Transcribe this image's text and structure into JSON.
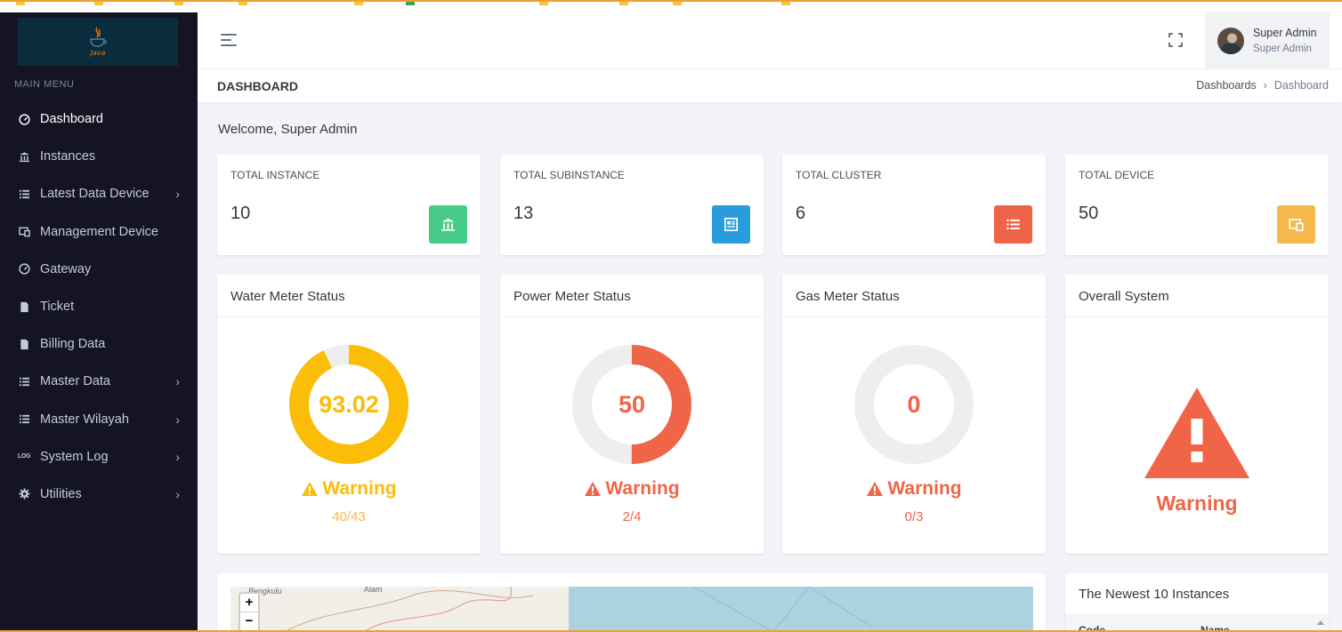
{
  "brand": {
    "logo_text": "Java"
  },
  "sidebar": {
    "menu_title": "MAIN MENU",
    "items": [
      {
        "label": "Dashboard",
        "icon": "speedometer-icon",
        "has_submenu": false,
        "active": true
      },
      {
        "label": "Instances",
        "icon": "bank-icon",
        "has_submenu": false,
        "active": false
      },
      {
        "label": "Latest Data Device",
        "icon": "list-icon",
        "has_submenu": true,
        "active": false
      },
      {
        "label": "Management Device",
        "icon": "devices-icon",
        "has_submenu": false,
        "active": false
      },
      {
        "label": "Gateway",
        "icon": "speedometer-icon",
        "has_submenu": false,
        "active": false
      },
      {
        "label": "Ticket",
        "icon": "file-icon",
        "has_submenu": false,
        "active": false
      },
      {
        "label": "Billing Data",
        "icon": "file-icon",
        "has_submenu": false,
        "active": false
      },
      {
        "label": "Master Data",
        "icon": "list-icon",
        "has_submenu": true,
        "active": false
      },
      {
        "label": "Master Wilayah",
        "icon": "list-icon",
        "has_submenu": true,
        "active": false
      },
      {
        "label": "System Log",
        "icon": "log-icon",
        "has_submenu": true,
        "active": false
      },
      {
        "label": "Utilities",
        "icon": "gear-icon",
        "has_submenu": true,
        "active": false
      }
    ]
  },
  "header": {
    "user_name": "Super Admin",
    "user_role": "Super Admin"
  },
  "page": {
    "title": "DASHBOARD",
    "breadcrumb": [
      "Dashboards",
      "Dashboard"
    ],
    "welcome": "Welcome, Super Admin"
  },
  "stats": [
    {
      "label": "TOTAL INSTANCE",
      "value": "10",
      "icon": "bank-icon",
      "color": "#45cb85"
    },
    {
      "label": "TOTAL SUBINSTANCE",
      "value": "13",
      "icon": "newspaper-icon",
      "color": "#299cdb"
    },
    {
      "label": "TOTAL CLUSTER",
      "value": "6",
      "icon": "list-icon",
      "color": "#f06548"
    },
    {
      "label": "TOTAL DEVICE",
      "value": "50",
      "icon": "devices-icon",
      "color": "#f7b84b"
    }
  ],
  "meters": [
    {
      "title": "Water Meter Status",
      "value": "93.02",
      "percent": 93.02,
      "status": "Warning",
      "ratio": "40/43",
      "color": "#fbbd08",
      "ratio_color": "#f7b84b"
    },
    {
      "title": "Power Meter Status",
      "value": "50",
      "percent": 50,
      "status": "Warning",
      "ratio": "2/4",
      "color": "#f06548",
      "ratio_color": "#f06548"
    },
    {
      "title": "Gas Meter Status",
      "value": "0",
      "percent": 0,
      "status": "Warning",
      "ratio": "0/3",
      "color": "#f06548",
      "ratio_color": "#f06548"
    }
  ],
  "overall": {
    "title": "Overall System",
    "status": "Warning",
    "color": "#f06548"
  },
  "map": {
    "labels": [
      "Bengkulu",
      "Alam"
    ],
    "zoom_in": "+",
    "zoom_out": "−"
  },
  "newest": {
    "title": "The Newest 10 Instances",
    "columns": [
      "Code",
      "Name"
    ]
  }
}
